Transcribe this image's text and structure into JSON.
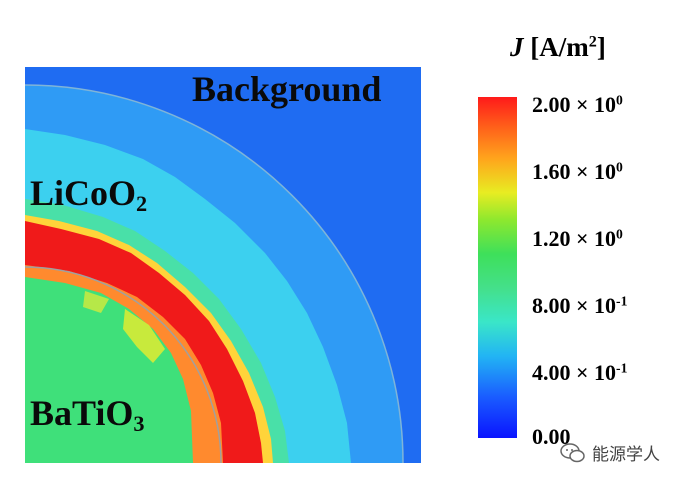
{
  "labels": {
    "background": "Background",
    "licoo2_base": "LiCoO",
    "licoo2_sub": "2",
    "batio3_base": "BaTiO",
    "batio3_sub": "3"
  },
  "colorbar": {
    "symbol": "J",
    "unit_open": "[A/m",
    "unit_sup": "2",
    "unit_close": "]",
    "ticks": [
      {
        "base": "2.00 × 10",
        "exp": "0"
      },
      {
        "base": "1.60 × 10",
        "exp": "0"
      },
      {
        "base": "1.20 × 10",
        "exp": "0"
      },
      {
        "base": "8.00 × 10",
        "exp": "-1"
      },
      {
        "base": "4.00 × 10",
        "exp": "-1"
      },
      {
        "base": "0.00",
        "exp": ""
      }
    ],
    "colors": {
      "max": "#ff1a1a",
      "high": "#ffa41c",
      "mid_high": "#e8ec22",
      "mid": "#3ee05a",
      "mid_low": "#3ae6c8",
      "low": "#22b4f4",
      "min": "#0a14ff"
    }
  },
  "field_colors": {
    "background": "#1f6cf2",
    "outer_shell": "#2f9bf5",
    "inner_shell": "#3cd0ef",
    "red_band": "#f01a1a",
    "orange_band": "#ffa33a",
    "core": "#3fe07a"
  },
  "watermark": {
    "icon": "wechat-icon",
    "text": "能源学人"
  }
}
